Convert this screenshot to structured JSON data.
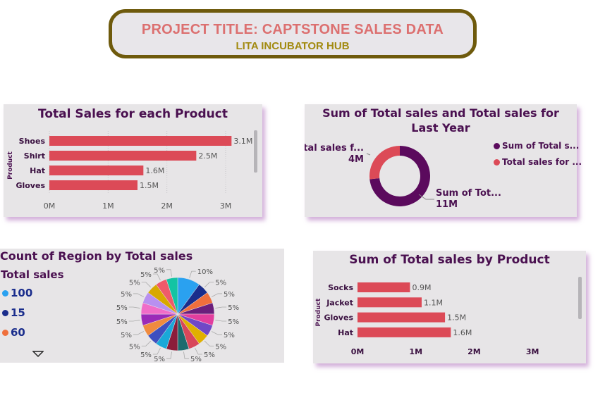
{
  "header": {
    "title": "PROJECT TITLE: CAPTSTONE SALES DATA",
    "subtitle": "LITA INCUBATOR HUB"
  },
  "colors": {
    "bar": "#dc4a57",
    "title_text": "#4a1050",
    "accent": "#dc7070",
    "subtitle": "#a28a10"
  },
  "chart_data": [
    {
      "type": "bar",
      "orientation": "horizontal",
      "title": "Total Sales for each Product",
      "ylabel": "Product",
      "categories": [
        "Shoes",
        "Shirt",
        "Hat",
        "Gloves"
      ],
      "values": [
        3.1,
        2.5,
        1.6,
        1.5
      ],
      "value_labels": [
        "3.1M",
        "2.5M",
        "1.6M",
        "1.5M"
      ],
      "ticks": [
        "0M",
        "1M",
        "2M",
        "3M"
      ],
      "xlim": [
        0,
        3.3
      ],
      "grid": true
    },
    {
      "type": "pie",
      "variant": "donut",
      "title": "Sum of Total sales and Total sales for Last Year",
      "slices": [
        {
          "label": "Sum of Total s...",
          "callout": "Sum of Tot...",
          "value": 11,
          "value_label": "11M",
          "color": "#5b0a5d"
        },
        {
          "label": "Total sales for ...",
          "callout": "Total sales f...",
          "value": 4,
          "value_label": "4M",
          "color": "#dc4a57"
        }
      ]
    },
    {
      "type": "pie",
      "title": "Count of Region by Total sales",
      "legend_title": "Total sales",
      "legend": [
        {
          "label": "100",
          "color": "#2aa1f0"
        },
        {
          "label": "15",
          "color": "#1a2d8c"
        },
        {
          "label": "60",
          "color": "#ef6f3c"
        }
      ],
      "slices": [
        {
          "value": 10,
          "label": "10%",
          "color": "#2aa1f0"
        },
        {
          "value": 5,
          "label": "5%",
          "color": "#1a2d8c"
        },
        {
          "value": 5,
          "label": "5%",
          "color": "#ef6f3c"
        },
        {
          "value": 5,
          "label": "5%",
          "color": "#6b1f7c"
        },
        {
          "value": 5,
          "label": "5%",
          "color": "#e23e9e"
        },
        {
          "value": 5,
          "label": "5%",
          "color": "#7048c6"
        },
        {
          "value": 5,
          "label": "5%",
          "color": "#e0b000"
        },
        {
          "value": 5,
          "label": "5%",
          "color": "#d8475a"
        },
        {
          "value": 5,
          "label": "5%",
          "color": "#1c6b6e"
        },
        {
          "value": 5,
          "label": "5%",
          "color": "#8b1d3a"
        },
        {
          "value": 5,
          "label": "5%",
          "color": "#1aa8d8"
        },
        {
          "value": 5,
          "label": "5%",
          "color": "#3d4fc0"
        },
        {
          "value": 5,
          "label": "5%",
          "color": "#f08b3e"
        },
        {
          "value": 5,
          "label": "5%",
          "color": "#9a2ab8"
        },
        {
          "value": 5,
          "label": "5%",
          "color": "#f06cc8"
        },
        {
          "value": 5,
          "label": "5%",
          "color": "#b890f0"
        },
        {
          "value": 5,
          "label": "5%",
          "color": "#d8a800"
        },
        {
          "value": 5,
          "label": "5%",
          "color": "#ef5a6a"
        },
        {
          "value": 5,
          "label": "5%",
          "color": "#13c4a3"
        }
      ]
    },
    {
      "type": "bar",
      "orientation": "horizontal",
      "title": "Sum of Total sales by Product",
      "ylabel": "Product",
      "categories": [
        "Socks",
        "Jacket",
        "Gloves",
        "Hat"
      ],
      "values": [
        0.9,
        1.1,
        1.5,
        1.6
      ],
      "value_labels": [
        "0.9M",
        "1.1M",
        "1.5M",
        "1.6M"
      ],
      "ticks": [
        "0M",
        "1M",
        "2M",
        "3M"
      ],
      "xlim": [
        0,
        3.3
      ],
      "grid": false
    }
  ]
}
